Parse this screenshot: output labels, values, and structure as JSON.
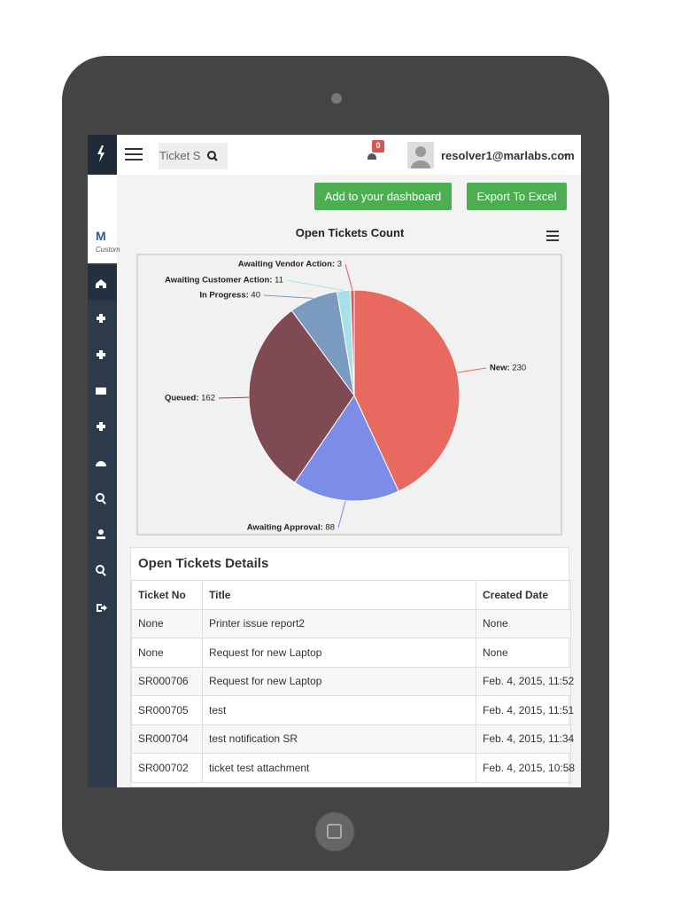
{
  "header": {
    "search_placeholder": "Ticket S",
    "notification_count": 0,
    "user": "resolver1@marlabs.com"
  },
  "sidebar": {
    "logo": "M",
    "logo_caption": "Custom"
  },
  "buttons": [
    "Add to your dashboard",
    "Export To Excel"
  ],
  "chart_data": {
    "type": "pie",
    "title": "Open Tickets Count",
    "categories": [
      "New",
      "Awaiting Approval",
      "Queued",
      "In Progress",
      "Awaiting Customer Action",
      "Awaiting Vendor Action"
    ],
    "values": [
      230,
      88,
      162,
      40,
      11,
      3
    ],
    "colors": [
      "#e8695f",
      "#7b8de6",
      "#7f4a53",
      "#7a9ac0",
      "#a8e0e8",
      "#e05566"
    ]
  },
  "table": {
    "title": "Open Tickets Details",
    "columns": [
      "Ticket No",
      "Title",
      "Created Date"
    ],
    "rows": [
      [
        "None",
        "Printer issue report2",
        "None"
      ],
      [
        "None",
        "Request for new Laptop",
        "None"
      ],
      [
        "SR000706",
        "Request for new Laptop",
        "Feb. 4, 2015, 11:52"
      ],
      [
        "SR000705",
        "test",
        "Feb. 4, 2015, 11:51"
      ],
      [
        "SR000704",
        "test notification SR",
        "Feb. 4, 2015, 11:34"
      ],
      [
        "SR000702",
        "ticket test attachment",
        "Feb. 4, 2015, 10:58"
      ]
    ]
  }
}
